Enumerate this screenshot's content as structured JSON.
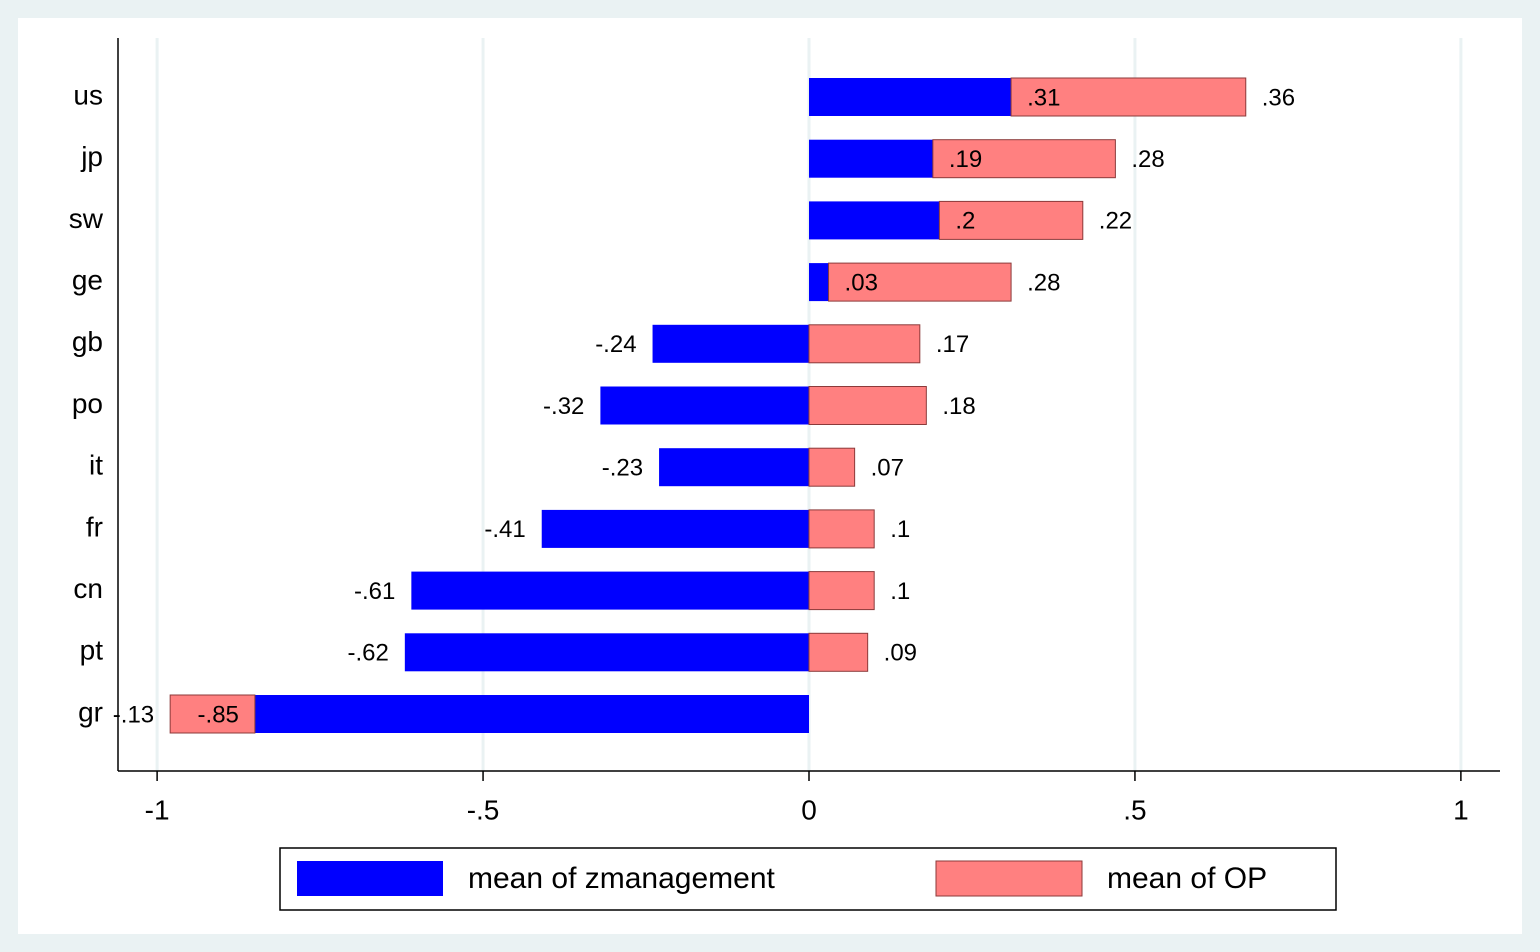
{
  "chart_data": {
    "type": "stacked-barh",
    "categories": [
      "us",
      "jp",
      "sw",
      "ge",
      "gb",
      "po",
      "it",
      "fr",
      "cn",
      "pt",
      "gr"
    ],
    "series": [
      {
        "name": "mean of zmanagement",
        "color": "#0000ff",
        "values": [
          0.31,
          0.19,
          0.2,
          0.03,
          -0.24,
          -0.32,
          -0.23,
          -0.41,
          -0.61,
          -0.62,
          -0.85
        ],
        "value_labels": [
          ".31",
          ".19",
          ".2",
          ".03",
          "-.24",
          "-.32",
          "-.23",
          "-.41",
          "-.61",
          "-.62",
          "-.85"
        ]
      },
      {
        "name": "mean of OP",
        "color": "#ff8080",
        "values": [
          0.36,
          0.28,
          0.22,
          0.28,
          0.17,
          0.18,
          0.07,
          0.1,
          0.1,
          0.09,
          -0.13
        ],
        "value_labels": [
          ".36",
          ".28",
          ".22",
          ".28",
          ".17",
          ".18",
          ".07",
          ".1",
          ".1",
          ".09",
          "-.13"
        ]
      }
    ],
    "xlim": [
      -1.06,
      1.06
    ],
    "xticks": [
      -1,
      {
        "value": -0.5,
        "label": "-.5"
      },
      0,
      {
        "value": 0.5,
        "label": ".5"
      },
      1
    ],
    "grid": true
  }
}
